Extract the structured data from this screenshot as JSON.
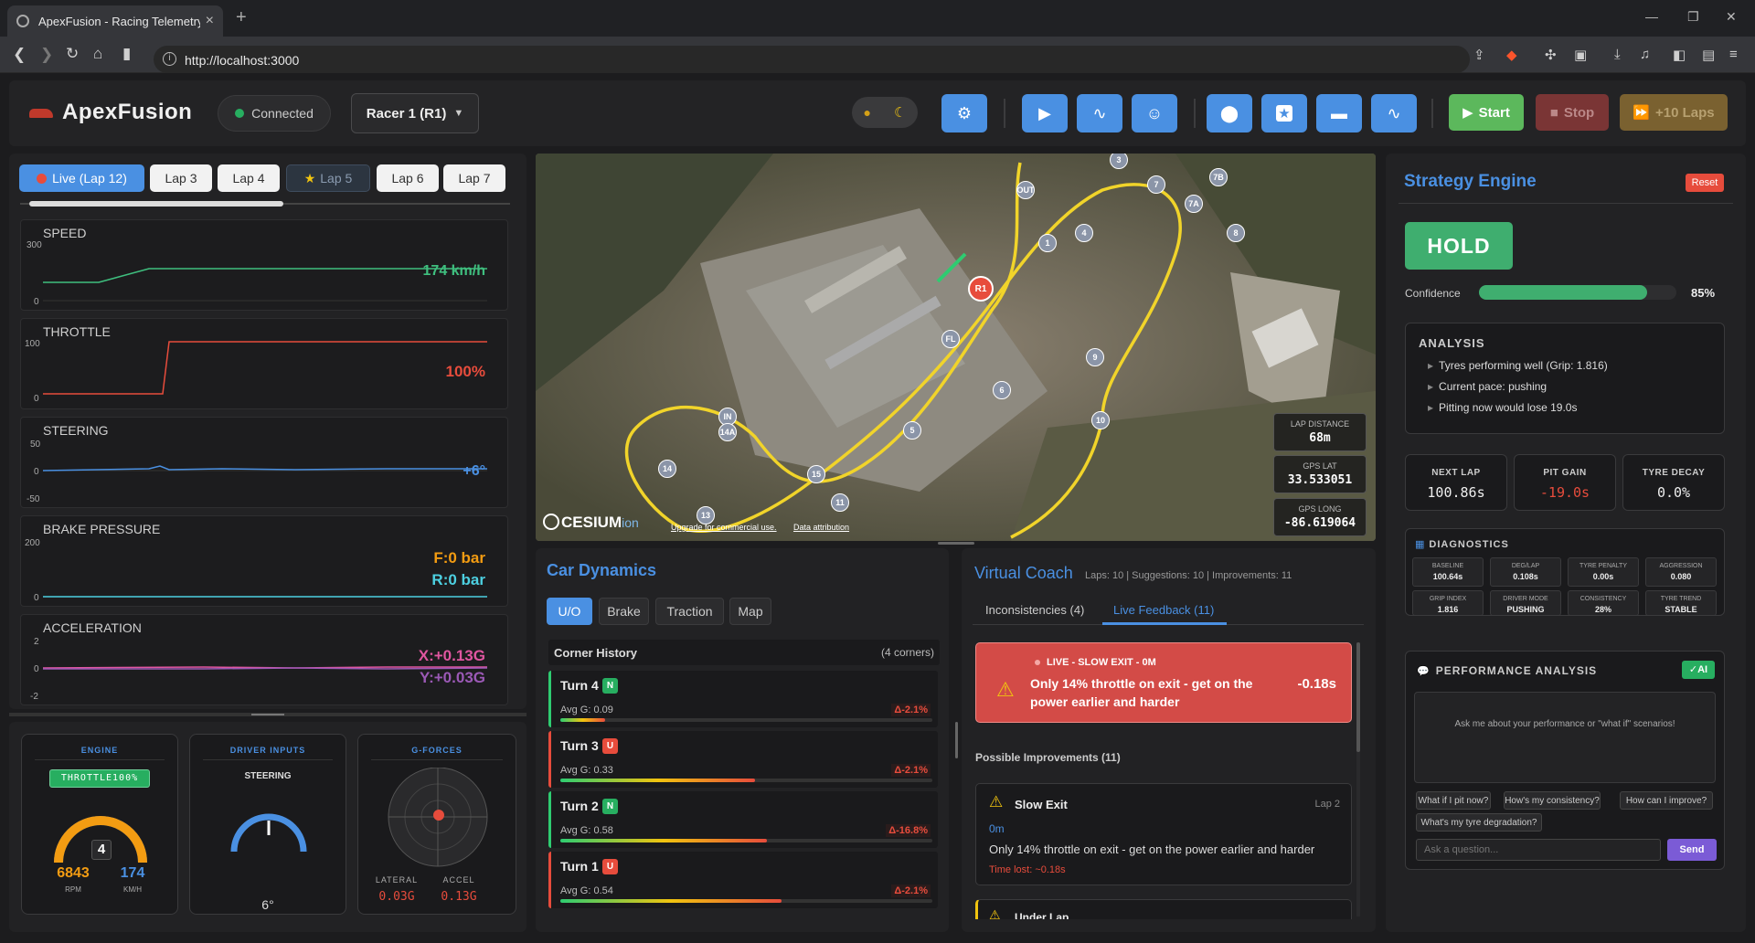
{
  "browser": {
    "tab_title": "ApexFusion - Racing Telemetry P",
    "url": "http://localhost:3000"
  },
  "header": {
    "app_name": "ApexFusion",
    "connection_status": "Connected",
    "racer_select": "Racer 1 (R1)",
    "start_label": "Start",
    "stop_label": "Stop",
    "plus_laps_label": "+10 Laps"
  },
  "laps": {
    "tabs": [
      {
        "label": "Live (Lap 12)",
        "state": "active"
      },
      {
        "label": "Lap 3",
        "state": "normal"
      },
      {
        "label": "Lap 4",
        "state": "normal"
      },
      {
        "label": "Lap 5",
        "state": "starred"
      },
      {
        "label": "Lap 6",
        "state": "normal"
      },
      {
        "label": "Lap 7",
        "state": "normal"
      }
    ]
  },
  "telemetry": {
    "speed": {
      "label": "SPEED",
      "value": "174 km/h",
      "ymax": "300",
      "ymin": "0",
      "color": "#3fbf7f"
    },
    "throttle": {
      "label": "THROTTLE",
      "value": "100%",
      "ymax": "100",
      "ymin": "0",
      "color": "#e74c3c"
    },
    "steering": {
      "label": "STEERING",
      "value": "+6°",
      "ymax": "50",
      "ymid": "0",
      "ymin": "-50",
      "color": "#4a90e2"
    },
    "brake": {
      "label": "BRAKE PRESSURE",
      "front": "F:0 bar",
      "rear": "R:0 bar",
      "ymax": "200",
      "ymin": "0"
    },
    "accel": {
      "label": "ACCELERATION",
      "x": "X:+0.13G",
      "y": "Y:+0.03G",
      "ymax": "2",
      "ymid": "0",
      "ymin": "-2"
    }
  },
  "gauges": {
    "engine": {
      "title": "ENGINE",
      "throttle_badge": "THROTTLE100%",
      "gear": "4",
      "rpm": "6843",
      "rpm_label": "RPM",
      "speed": "174",
      "speed_label": "KM/H"
    },
    "driver": {
      "title": "DRIVER INPUTS",
      "steering_label": "STEERING",
      "steering_value": "6°"
    },
    "gforces": {
      "title": "G-FORCES",
      "lateral_label": "LATERAL",
      "accel_label": "ACCEL",
      "lateral": "0.03G",
      "accel": "0.13G"
    }
  },
  "map": {
    "car_marker": "R1",
    "attribution_logo": "CESIUM",
    "attribution_ion": "ion",
    "upgrade_text": "Upgrade for commercial use.",
    "data_attr": "Data attribution",
    "markers": [
      "3",
      "7",
      "7B",
      "OUT",
      "7A",
      "1",
      "4",
      "8",
      "FL",
      "9",
      "6",
      "IN",
      "14A",
      "5",
      "10",
      "14",
      "15",
      "11",
      "13"
    ],
    "lap_distance_label": "LAP DISTANCE",
    "lap_distance": "68m",
    "gps_lat_label": "GPS LAT",
    "gps_lat": "33.533051",
    "gps_long_label": "GPS LONG",
    "gps_long": "-86.619064"
  },
  "car_dynamics": {
    "title": "Car Dynamics",
    "tabs": [
      "U/O",
      "Brake",
      "Traction",
      "Map"
    ],
    "history_title": "Corner History",
    "history_count": "(4 corners)",
    "corners": [
      {
        "name": "Turn 4",
        "badge": "N",
        "avg_g": "Avg G: 0.09",
        "delta": "Δ-2.1%",
        "fill": 0.12
      },
      {
        "name": "Turn 3",
        "badge": "U",
        "avg_g": "Avg G: 0.33",
        "delta": "Δ-2.1%",
        "fill": 0.52
      },
      {
        "name": "Turn 2",
        "badge": "N",
        "avg_g": "Avg G: 0.58",
        "delta": "Δ-16.8%",
        "fill": 0.55
      },
      {
        "name": "Turn 1",
        "badge": "U",
        "avg_g": "Avg G: 0.54",
        "delta": "Δ-2.1%",
        "fill": 0.59
      }
    ]
  },
  "coach": {
    "title": "Virtual Coach",
    "stats": "Laps: 10 | Suggestions: 10 | Improvements: 11",
    "tab_inconsistencies": "Inconsistencies (4)",
    "tab_live": "Live Feedback (11)",
    "alert_head": "LIVE - SLOW EXIT - 0M",
    "alert_text": "Only 14% throttle on exit - get on the power earlier and harder",
    "alert_delta": "-0.18s",
    "improvements_title": "Possible Improvements (11)",
    "item": {
      "title": "Slow Exit",
      "lap": "Lap 2",
      "dist": "0m",
      "text": "Only 14% throttle on exit - get on the power earlier and harder",
      "loss": "Time lost: ~0.18s"
    },
    "item2_title": "Under Lap"
  },
  "strategy": {
    "title": "Strategy Engine",
    "reset_label": "Reset",
    "decision": "HOLD",
    "confidence_label": "Confidence",
    "confidence_value": "85%",
    "confidence_fraction": 0.85,
    "analysis_title": "ANALYSIS",
    "analysis": [
      "Tyres performing well (Grip: 1.816)",
      "Current pace: pushing",
      "Pitting now would lose 19.0s"
    ],
    "next_lap_label": "NEXT LAP",
    "next_lap": "100.86s",
    "pit_gain_label": "PIT GAIN",
    "pit_gain": "-19.0s",
    "tyre_decay_label": "TYRE DECAY",
    "tyre_decay": "0.0%",
    "diagnostics_title": "DIAGNOSTICS",
    "diagnostics": [
      {
        "label": "BASELINE",
        "value": "100.64s"
      },
      {
        "label": "DEG/LAP",
        "value": "0.108s"
      },
      {
        "label": "TYRE PENALTY",
        "value": "0.00s"
      },
      {
        "label": "AGGRESSION",
        "value": "0.080"
      },
      {
        "label": "GRIP INDEX",
        "value": "1.816"
      },
      {
        "label": "DRIVER MODE",
        "value": "PUSHING"
      },
      {
        "label": "CONSISTENCY",
        "value": "28%"
      },
      {
        "label": "TYRE TREND",
        "value": "STABLE"
      }
    ],
    "perf_title": "PERFORMANCE ANALYSIS",
    "ai_badge": "✓AI",
    "perf_placeholder": "Ask me about your performance or \"what if\" scenarios!",
    "chips": [
      "What if I pit now?",
      "How's my consistency?",
      "How can I improve?",
      "What's my tyre degradation?"
    ],
    "ask_placeholder": "Ask a question...",
    "send_label": "Send"
  }
}
